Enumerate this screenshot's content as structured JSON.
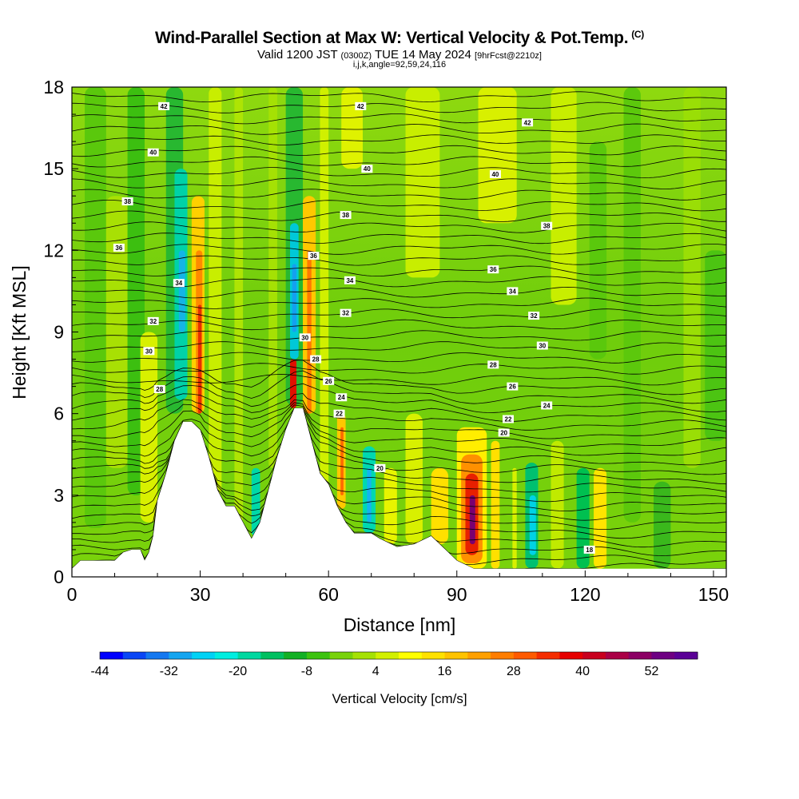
{
  "header": {
    "title": "Wind-Parallel Section at Max W: Vertical Velocity & Pot.Temp.",
    "title_mark": "(C)",
    "valid_prefix": "Valid 1200 JST",
    "valid_utc": "(0300Z)",
    "valid_date": "TUE 14 May 2024",
    "forecast": "[9hrFcst@2210z]",
    "indices": "i,j,k,angle=92,59,24,116"
  },
  "chart_data": {
    "type": "heatmap",
    "xlabel": "Distance [nm]",
    "ylabel": "Height [Kft MSL]",
    "xlim": [
      0,
      153
    ],
    "ylim": [
      0,
      18
    ],
    "x_ticks": [
      "0",
      "30",
      "60",
      "90",
      "120",
      "150"
    ],
    "y_ticks": [
      "0",
      "3",
      "6",
      "9",
      "12",
      "15",
      "18"
    ],
    "terrain_kft": [
      [
        0,
        0.3
      ],
      [
        2,
        0.6
      ],
      [
        6,
        0.6
      ],
      [
        10,
        0.6
      ],
      [
        12,
        0.9
      ],
      [
        14,
        1.0
      ],
      [
        16,
        1.0
      ],
      [
        17,
        0.6
      ],
      [
        18,
        0.9
      ],
      [
        19,
        1.5
      ],
      [
        20,
        2.8
      ],
      [
        22,
        3.8
      ],
      [
        24,
        5.0
      ],
      [
        26,
        5.7
      ],
      [
        28,
        5.7
      ],
      [
        30,
        5.4
      ],
      [
        32,
        4.4
      ],
      [
        34,
        3.2
      ],
      [
        36,
        2.6
      ],
      [
        38,
        2.6
      ],
      [
        40,
        2.0
      ],
      [
        42,
        1.4
      ],
      [
        44,
        2.0
      ],
      [
        46,
        3.2
      ],
      [
        48,
        4.4
      ],
      [
        50,
        5.4
      ],
      [
        52,
        6.2
      ],
      [
        54,
        6.2
      ],
      [
        56,
        5.0
      ],
      [
        58,
        3.8
      ],
      [
        60,
        3.4
      ],
      [
        62,
        2.6
      ],
      [
        64,
        2.0
      ],
      [
        66,
        1.6
      ],
      [
        70,
        1.6
      ],
      [
        72,
        1.4
      ],
      [
        76,
        1.1
      ],
      [
        80,
        1.2
      ],
      [
        84,
        1.5
      ],
      [
        86,
        1.2
      ],
      [
        90,
        0.6
      ],
      [
        94,
        0.3
      ],
      [
        100,
        0.3
      ],
      [
        140,
        0.3
      ],
      [
        153,
        0.3
      ]
    ],
    "theta_contours": {
      "units": "K",
      "labels": [
        {
          "text": "42",
          "x": 21.5,
          "y": 17.3
        },
        {
          "text": "42",
          "x": 67.5,
          "y": 17.3
        },
        {
          "text": "42",
          "x": 106.5,
          "y": 16.7
        },
        {
          "text": "40",
          "x": 19,
          "y": 15.6
        },
        {
          "text": "40",
          "x": 69,
          "y": 15.0
        },
        {
          "text": "40",
          "x": 99,
          "y": 14.8
        },
        {
          "text": "38",
          "x": 13,
          "y": 13.8
        },
        {
          "text": "38",
          "x": 64,
          "y": 13.3
        },
        {
          "text": "38",
          "x": 111,
          "y": 12.9
        },
        {
          "text": "36",
          "x": 11,
          "y": 12.1
        },
        {
          "text": "36",
          "x": 56.5,
          "y": 11.8
        },
        {
          "text": "36",
          "x": 98.5,
          "y": 11.3
        },
        {
          "text": "34",
          "x": 25,
          "y": 10.8
        },
        {
          "text": "34",
          "x": 65,
          "y": 10.9
        },
        {
          "text": "34",
          "x": 103,
          "y": 10.5
        },
        {
          "text": "32",
          "x": 19,
          "y": 9.4
        },
        {
          "text": "32",
          "x": 64,
          "y": 9.7
        },
        {
          "text": "32",
          "x": 108,
          "y": 9.6
        },
        {
          "text": "30",
          "x": 18,
          "y": 8.3
        },
        {
          "text": "30",
          "x": 54.5,
          "y": 8.8
        },
        {
          "text": "30",
          "x": 110,
          "y": 8.5
        },
        {
          "text": "28",
          "x": 57,
          "y": 8.0
        },
        {
          "text": "28",
          "x": 98.5,
          "y": 7.8
        },
        {
          "text": "28",
          "x": 20.5,
          "y": 6.9
        },
        {
          "text": "26",
          "x": 60,
          "y": 7.2
        },
        {
          "text": "26",
          "x": 103,
          "y": 7.0
        },
        {
          "text": "24",
          "x": 63,
          "y": 6.6
        },
        {
          "text": "24",
          "x": 111,
          "y": 6.3
        },
        {
          "text": "22",
          "x": 62.5,
          "y": 6.0
        },
        {
          "text": "22",
          "x": 102,
          "y": 5.8
        },
        {
          "text": "20",
          "x": 101,
          "y": 5.3
        },
        {
          "text": "20",
          "x": 72,
          "y": 4.0
        },
        {
          "text": "18",
          "x": 121,
          "y": 1.0
        }
      ]
    },
    "colorbar": {
      "label": "Vertical Velocity [cm/s]",
      "tick_labels": [
        "-44",
        "-32",
        "-20",
        "-8",
        "4",
        "16",
        "28",
        "40",
        "52"
      ],
      "colors": [
        "#0000ff",
        "#0a46f5",
        "#1478f0",
        "#14a5f0",
        "#00d2f5",
        "#00eee0",
        "#00d8a0",
        "#00c060",
        "#12b024",
        "#3cc30f",
        "#78d20a",
        "#a5e104",
        "#d2f000",
        "#ffff00",
        "#ffe100",
        "#ffc300",
        "#ffa000",
        "#ff7d00",
        "#ff5a00",
        "#f52d00",
        "#e60000",
        "#c8001e",
        "#aa0046",
        "#8c0064",
        "#6e0082",
        "#5a0096"
      ]
    }
  }
}
